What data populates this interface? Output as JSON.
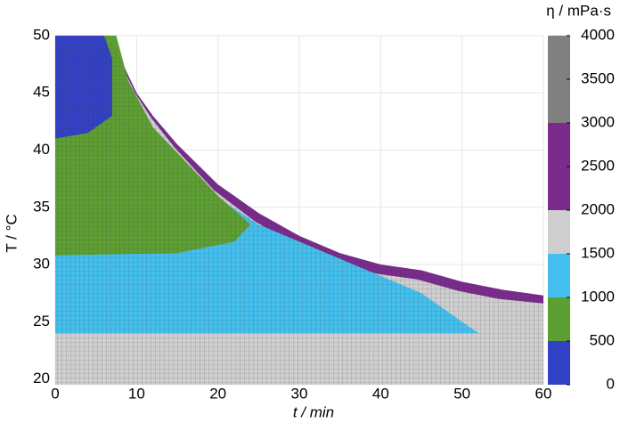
{
  "chart_data": {
    "type": "region-map",
    "xlabel": "t / min",
    "ylabel": "T / °C",
    "colorbar_title": "η / mPa·s",
    "xlim": [
      0,
      60
    ],
    "ylim": [
      19.5,
      50
    ],
    "xticks": [
      0,
      10,
      20,
      30,
      40,
      50,
      60
    ],
    "yticks": [
      20,
      25,
      30,
      35,
      40,
      45,
      50
    ],
    "grid": true,
    "colorbar": {
      "lim": [
        0,
        4000
      ],
      "ticks": [
        0,
        500,
        1000,
        1500,
        2000,
        2500,
        3000,
        3500,
        4000
      ],
      "bands": [
        {
          "range": [
            0,
            500
          ],
          "color": "#3341c4"
        },
        {
          "range": [
            500,
            1000
          ],
          "color": "#5e9f34"
        },
        {
          "range": [
            1000,
            1500
          ],
          "color": "#45c0ee"
        },
        {
          "range": [
            1500,
            2000
          ],
          "color": "#cfcfcf"
        },
        {
          "range": [
            2000,
            3000
          ],
          "color": "#7a2c8c"
        },
        {
          "range": [
            3000,
            4000
          ],
          "color": "#808080"
        }
      ]
    },
    "regions": [
      {
        "color": "#7a2c8c",
        "x": [
          0,
          6.5,
          8,
          10,
          12,
          15,
          20,
          25,
          30,
          35,
          40,
          45,
          50,
          55,
          60,
          60,
          0
        ],
        "y": [
          50,
          50,
          48,
          45,
          43,
          40.5,
          37,
          34.5,
          32.5,
          31,
          30,
          29.5,
          28.5,
          27.8,
          27.3,
          19.5,
          19.5
        ]
      },
      {
        "color": "#cfcfcf",
        "x": [
          0,
          6.3,
          7.8,
          9.8,
          11.8,
          14.7,
          19.5,
          24.5,
          29.5,
          34.5,
          39.5,
          44.5,
          49.5,
          54.5,
          60,
          60,
          0
        ],
        "y": [
          50,
          50,
          48,
          45,
          42.8,
          40.2,
          36.5,
          33.8,
          31.7,
          30.2,
          29.2,
          28.7,
          27.7,
          27,
          26.6,
          19.5,
          19.5
        ]
      },
      {
        "color": "#45c0ee",
        "x": [
          0,
          52,
          45,
          35,
          25,
          20,
          15,
          12,
          9,
          6.2,
          0
        ],
        "y": [
          24,
          24,
          27.5,
          30.5,
          33.5,
          35.8,
          39.3,
          42,
          46,
          50,
          50
        ]
      },
      {
        "color": "#5e9f34",
        "x": [
          0,
          15,
          22,
          24,
          20,
          16,
          12,
          9,
          7.5,
          0
        ],
        "y": [
          30.8,
          31,
          32,
          33.5,
          36,
          39,
          42,
          46,
          50,
          50
        ]
      },
      {
        "color": "#3341c4",
        "x": [
          0,
          4,
          7,
          7,
          6,
          0
        ],
        "y": [
          41,
          41.5,
          43,
          48,
          50,
          50
        ]
      }
    ]
  }
}
